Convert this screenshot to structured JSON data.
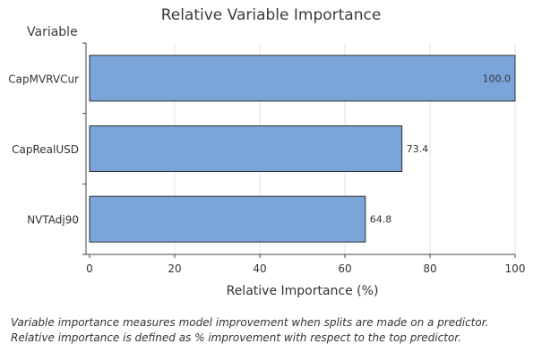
{
  "chart_data": {
    "type": "bar",
    "orientation": "horizontal",
    "title": "Relative Variable Importance",
    "categories": [
      "CapMVRVCur",
      "CapRealUSD",
      "NVTAdj90"
    ],
    "values": [
      100.0,
      73.4,
      64.8
    ],
    "value_labels": [
      "100.0",
      "73.4",
      "64.8"
    ],
    "xlabel": "Relative Importance (%)",
    "ylabel": "Variable",
    "xlim": [
      0,
      100
    ],
    "x_ticks": [
      0,
      20,
      40,
      60,
      80,
      100
    ],
    "grid": "vertical",
    "bar_color": "#7BA5D9",
    "bar_edge_color": "#2d2d2d"
  },
  "footnotes": [
    "Variable importance measures model improvement when splits are made on a predictor.",
    "Relative importance is defined as % improvement with respect to the top predictor."
  ]
}
